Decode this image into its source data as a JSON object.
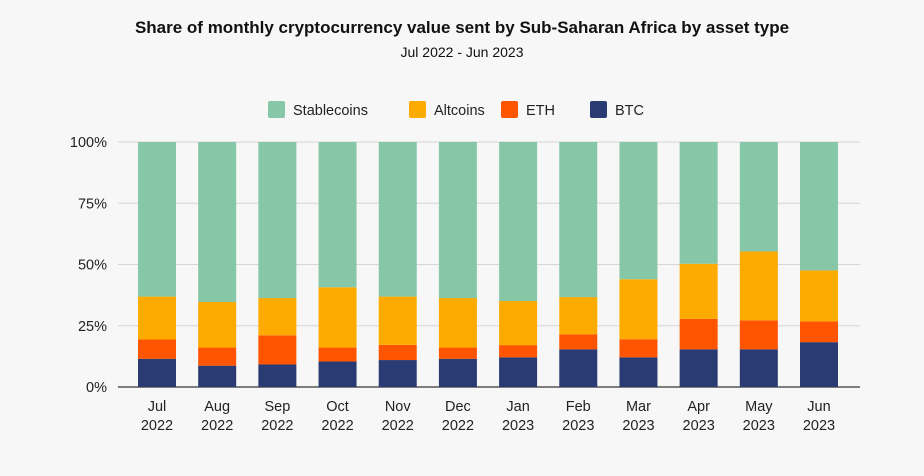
{
  "chart_data": {
    "type": "bar",
    "stacked": true,
    "title": "Share of monthly cryptocurrency value sent by Sub-Saharan Africa by asset type",
    "subtitle": "Jul 2022 - Jun 2023",
    "xlabel": "",
    "ylabel": "",
    "ylim": [
      0,
      100
    ],
    "yticks": [
      "0%",
      "25%",
      "50%",
      "75%",
      "100%"
    ],
    "grid": true,
    "legend_position": "top-center",
    "categories": [
      [
        "Jul",
        "2022"
      ],
      [
        "Aug",
        "2022"
      ],
      [
        "Sep",
        "2022"
      ],
      [
        "Oct",
        "2022"
      ],
      [
        "Nov",
        "2022"
      ],
      [
        "Dec",
        "2022"
      ],
      [
        "Jan",
        "2023"
      ],
      [
        "Feb",
        "2023"
      ],
      [
        "Mar",
        "2023"
      ],
      [
        "Apr",
        "2023"
      ],
      [
        "May",
        "2023"
      ],
      [
        "Jun",
        "2023"
      ]
    ],
    "legend": [
      "Stablecoins",
      "Altcoins",
      "ETH",
      "BTC"
    ],
    "series": [
      {
        "name": "BTC",
        "color": "#2a3a73",
        "values": [
          11.5,
          8.7,
          9.2,
          10.4,
          11.0,
          11.5,
          12.1,
          15.4,
          12.1,
          15.4,
          15.4,
          18.3
        ]
      },
      {
        "name": "ETH",
        "color": "#ff5400",
        "values": [
          7.9,
          7.4,
          11.9,
          5.7,
          6.2,
          4.6,
          5.0,
          6.1,
          7.4,
          12.4,
          11.8,
          8.5
        ]
      },
      {
        "name": "Altcoins",
        "color": "#fdab00",
        "values": [
          17.5,
          18.6,
          15.2,
          24.6,
          19.7,
          20.2,
          18.0,
          15.2,
          24.5,
          22.5,
          28.1,
          20.8
        ]
      },
      {
        "name": "Stablecoins",
        "color": "#86c7a8",
        "values": [
          63.1,
          65.3,
          63.7,
          59.3,
          63.1,
          63.7,
          64.9,
          63.3,
          56.0,
          49.7,
          44.7,
          52.4
        ]
      }
    ]
  }
}
